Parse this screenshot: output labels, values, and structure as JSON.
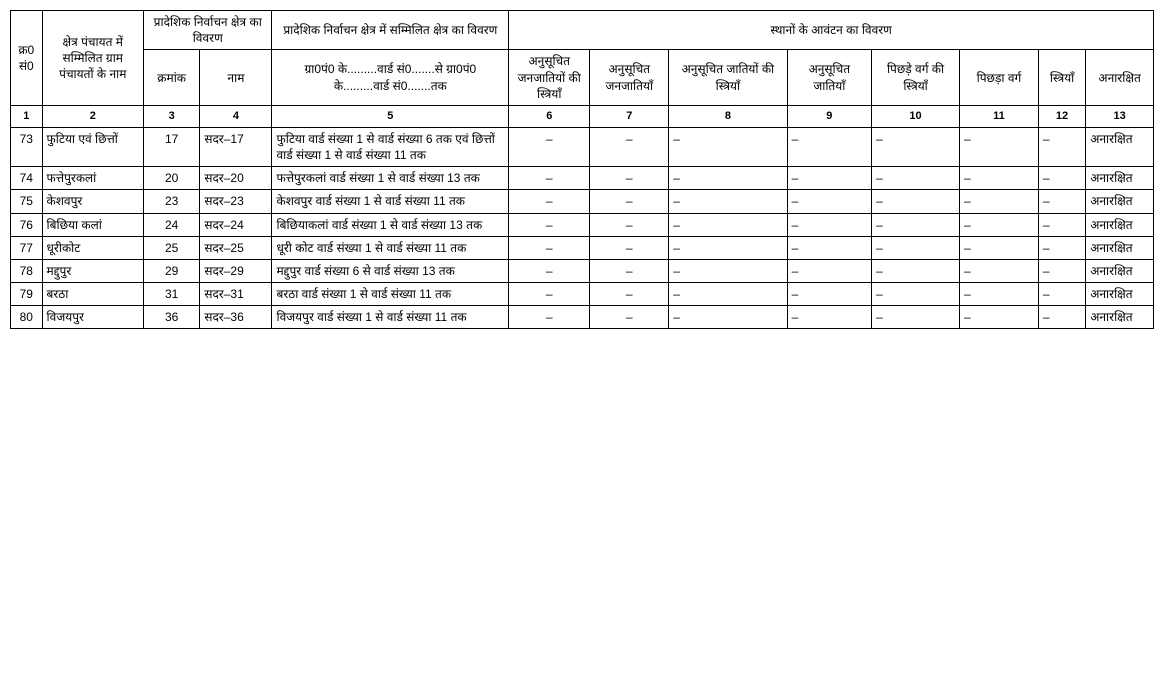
{
  "headers": {
    "h1": "क्र0 सं0",
    "h2": "क्षेत्र पंचायत में सम्मिलित ग्राम पंचायतों के नाम",
    "h3": "प्रादेशिक निर्वाचन क्षेत्र का विवरण",
    "h4": "प्रादेशिक निर्वाचन क्षेत्र में सम्मिलित क्षेत्र का विवरण",
    "h5": "स्थानों के आवंटन का विवरण",
    "sub": {
      "kramank": "क्रमांक",
      "naam": "नाम",
      "ward": "ग्रा0पं0 के.........वार्ड सं0.......से ग्रा0पं0 के.........वार्ड सं0.......तक",
      "c6": "अनुसूचित जनजातियों की स्त्रियाँ",
      "c7": "अनुसूचित जनजातियाँ",
      "c8": "अनुसूचित जातियों की स्त्रियाँ",
      "c9": "अनुसूचित जातियाँ",
      "c10": "पिछड़े वर्ग की स्त्रियाँ",
      "c11": "पिछड़ा वर्ग",
      "c12": "स्त्रियाँ",
      "c13": "अनारक्षित"
    }
  },
  "nums": {
    "n1": "1",
    "n2": "2",
    "n3": "3",
    "n4": "4",
    "n5": "5",
    "n6": "6",
    "n7": "7",
    "n8": "8",
    "n9": "9",
    "n10": "10",
    "n11": "11",
    "n12": "12",
    "n13": "13"
  },
  "rows": [
    {
      "sn": "73",
      "gram": "फुटिया एवं छित्तों",
      "kram": "17",
      "naam": "सदर–17",
      "ward": "फुटिया वार्ड संख्या 1 से वार्ड संख्या 6 तक एवं छित्तों वार्ड संख्या 1 से वार्ड संख्या 11 तक",
      "c6": "–",
      "c7": "–",
      "c8": "–",
      "c9": "–",
      "c10": "–",
      "c11": "–",
      "c12": "–",
      "c13": "अनारक्षित"
    },
    {
      "sn": "74",
      "gram": "फत्तेपुरकलां",
      "kram": "20",
      "naam": "सदर–20",
      "ward": "फत्तेपुरकलां वार्ड संख्या 1 से वार्ड संख्या 13 तक",
      "c6": "–",
      "c7": "–",
      "c8": "–",
      "c9": "–",
      "c10": "–",
      "c11": "–",
      "c12": "–",
      "c13": "अनारक्षित"
    },
    {
      "sn": "75",
      "gram": "केशवपुर",
      "kram": "23",
      "naam": "सदर–23",
      "ward": "केशवपुर वार्ड संख्या 1 से वार्ड संख्या 11 तक",
      "c6": "–",
      "c7": "–",
      "c8": "–",
      "c9": "–",
      "c10": "–",
      "c11": "–",
      "c12": "–",
      "c13": "अनारक्षित"
    },
    {
      "sn": "76",
      "gram": "बिछिया कलां",
      "kram": "24",
      "naam": "सदर–24",
      "ward": "बिछियाकलां वार्ड संख्या 1 से वार्ड संख्या 13 तक",
      "c6": "–",
      "c7": "–",
      "c8": "–",
      "c9": "–",
      "c10": "–",
      "c11": "–",
      "c12": "–",
      "c13": "अनारक्षित"
    },
    {
      "sn": "77",
      "gram": "धूरीकोट",
      "kram": "25",
      "naam": "सदर–25",
      "ward": "धूरी कोट वार्ड संख्या 1 से वार्ड संख्या 11 तक",
      "c6": "–",
      "c7": "–",
      "c8": "–",
      "c9": "–",
      "c10": "–",
      "c11": "–",
      "c12": "–",
      "c13": "अनारक्षित"
    },
    {
      "sn": "78",
      "gram": "मद्दुपुर",
      "kram": "29",
      "naam": "सदर–29",
      "ward": "मद्दुपुर वार्ड संख्या 6 से वार्ड संख्या 13 तक",
      "c6": "–",
      "c7": "–",
      "c8": "–",
      "c9": "–",
      "c10": "–",
      "c11": "–",
      "c12": "–",
      "c13": "अनारक्षित"
    },
    {
      "sn": "79",
      "gram": "बरठा",
      "kram": "31",
      "naam": "सदर–31",
      "ward": "बरठा वार्ड संख्या 1 से वार्ड संख्या 11 तक",
      "c6": "–",
      "c7": "–",
      "c8": "–",
      "c9": "–",
      "c10": "–",
      "c11": "–",
      "c12": "–",
      "c13": "अनारक्षित"
    },
    {
      "sn": "80",
      "gram": "विजयपुर",
      "kram": "36",
      "naam": "सदर–36",
      "ward": "विजयपुर वार्ड संख्या 1 से वार्ड संख्या 11 तक",
      "c6": "–",
      "c7": "–",
      "c8": "–",
      "c9": "–",
      "c10": "–",
      "c11": "–",
      "c12": "–",
      "c13": "अनारक्षित"
    }
  ]
}
